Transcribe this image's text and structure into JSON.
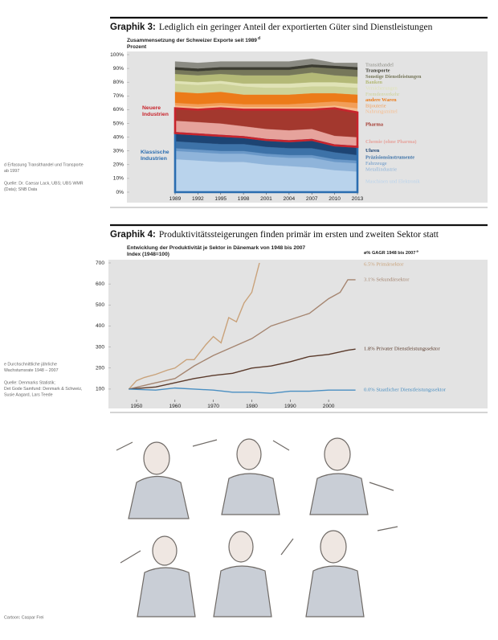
{
  "chart_data": [
    {
      "type": "area",
      "stacked": true,
      "label": "Graphik 3:",
      "title": "Lediglich ein geringer Anteil der exportierten Güter sind Dienstleistungen",
      "subtitle": "Zusammensetzung der Schweizer Exporte seit 1989",
      "footnote_marker": "d",
      "unit": "Prozent",
      "x": [
        1989,
        1992,
        1995,
        1998,
        2001,
        2004,
        2007,
        2010,
        2013
      ],
      "xlim": [
        1989,
        2013
      ],
      "xticks": [
        1989,
        1992,
        1995,
        1998,
        2001,
        2004,
        2007,
        2010,
        2013
      ],
      "ylim": [
        0,
        100
      ],
      "yticks": [
        {
          "value": 0,
          "label": "0%"
        },
        {
          "value": 10,
          "label": "10%"
        },
        {
          "value": 20,
          "label": "20%"
        },
        {
          "value": 30,
          "label": "30%"
        },
        {
          "value": 40,
          "label": "40%"
        },
        {
          "value": 50,
          "label": "50%"
        },
        {
          "value": 60,
          "label": "60%"
        },
        {
          "value": 70,
          "label": "70%"
        },
        {
          "value": 80,
          "label": "80%"
        },
        {
          "value": 90,
          "label": "90%"
        },
        {
          "value": 100,
          "label": "100%"
        }
      ],
      "grid": false,
      "series": [
        {
          "name": "Maschinen und Elektronik",
          "color": "#b9d3ec",
          "values": [
            24,
            23,
            22,
            22,
            20,
            19,
            18,
            16,
            15
          ]
        },
        {
          "name": "Metallindustrie",
          "color": "#8fb4da",
          "values": [
            6,
            6,
            6,
            6,
            6,
            6,
            7,
            6,
            6
          ]
        },
        {
          "name": "Fahrzeuge",
          "color": "#6a98c8",
          "values": [
            2,
            2,
            2,
            2,
            2,
            2,
            2,
            2,
            2
          ]
        },
        {
          "name": "Präzisionsinstrumente",
          "color": "#3d72a8",
          "values": [
            5,
            5,
            5,
            5,
            5,
            5,
            5,
            5,
            4
          ]
        },
        {
          "name": "Uhren",
          "color": "#1d4473",
          "values": [
            6,
            6,
            6,
            5,
            5,
            5,
            6,
            5,
            6
          ]
        },
        {
          "name": "Chemie (ohne Pharma)",
          "color": "#e6a39c",
          "values": [
            9,
            9,
            9,
            8,
            8,
            8,
            8,
            7,
            7
          ]
        },
        {
          "name": "Pharma",
          "color": "#a3382e",
          "values": [
            9,
            9,
            11,
            12,
            14,
            15,
            14,
            20,
            18
          ]
        },
        {
          "name": "Nahrungsmittel",
          "color": "#f7bd8e",
          "values": [
            2,
            2,
            2,
            2,
            2,
            2,
            2,
            2,
            3
          ]
        },
        {
          "name": "Bijouterie",
          "color": "#f29e58",
          "values": [
            2,
            2,
            2,
            2,
            2,
            2,
            3,
            3,
            4
          ]
        },
        {
          "name": "andere Waren",
          "color": "#ec7b19",
          "values": [
            8,
            8,
            8,
            7,
            7,
            7,
            7,
            6,
            6
          ]
        },
        {
          "name": "Fremdenverkehr",
          "color": "#cdd299",
          "values": [
            6,
            6,
            6,
            6,
            5,
            5,
            5,
            5,
            5
          ]
        },
        {
          "name": "Versicherungen",
          "color": "#e0e3b6",
          "values": [
            2,
            2,
            2,
            2,
            3,
            3,
            3,
            3,
            3
          ]
        },
        {
          "name": "Banken",
          "color": "#b4b977",
          "values": [
            5,
            5,
            5,
            6,
            6,
            6,
            7,
            5,
            5
          ]
        },
        {
          "name": "Sonstige Dienstleistungen",
          "color": "#76775a",
          "values": [
            3,
            3,
            3,
            4,
            4,
            4,
            4,
            5,
            5
          ]
        },
        {
          "name": "Transporte",
          "color": "#3b3b31",
          "values": [
            2,
            2,
            2,
            2,
            2,
            2,
            2,
            2,
            2
          ]
        },
        {
          "name": "Transithandel",
          "color": "#8b8b83",
          "values": [
            4,
            4,
            4,
            4,
            4,
            4,
            4,
            2,
            3
          ]
        }
      ],
      "annotations": [
        {
          "lines": [
            "Neuere",
            "Industrien"
          ],
          "color": "#c8242c"
        },
        {
          "lines": [
            "Klassische",
            "Industrien"
          ],
          "color": "#2a6db0"
        }
      ],
      "notes": [
        [
          "d Erfassung Transithandel und Transporte",
          "ab 1997"
        ],
        [
          "Quelle: Dr. Caesar Lack, UBS; UBS WMR",
          "(Data); SNB Data"
        ]
      ]
    },
    {
      "type": "line",
      "label": "Graphik 4:",
      "title": "Produktivitätssteigerungen finden primär im ersten und zweiten Sektor statt",
      "subtitle": "Entwicklung der Produktivität je Sektor in Dänemark von 1948 bis 2007",
      "unit": "Index (1948=100)",
      "legend_title": "ø% GAGR 1948 bis 2007",
      "footnote_marker": "e",
      "xlim": [
        1947.5,
        2007.5
      ],
      "xticks": [
        1950,
        1960,
        1970,
        1980,
        1990,
        2000
      ],
      "ylim": [
        50,
        700
      ],
      "yticks": [
        100,
        200,
        300,
        400,
        500,
        600,
        700
      ],
      "grid": false,
      "series": [
        {
          "name": "6.5% Primärsektor",
          "color": "#c9a27a",
          "x": [
            1948,
            1950,
            1952,
            1955,
            1958,
            1960,
            1963,
            1965,
            1968,
            1970,
            1972,
            1974,
            1976,
            1978,
            1980,
            1982
          ],
          "values": [
            100,
            140,
            155,
            170,
            190,
            200,
            240,
            240,
            310,
            350,
            320,
            440,
            420,
            510,
            560,
            700
          ]
        },
        {
          "name": "3.1% Sekundärsektor",
          "color": "#a58570",
          "x": [
            1948,
            1955,
            1960,
            1965,
            1970,
            1975,
            1980,
            1985,
            1990,
            1995,
            2000,
            2003,
            2005,
            2007
          ],
          "values": [
            100,
            130,
            150,
            210,
            260,
            300,
            340,
            400,
            430,
            460,
            530,
            560,
            620,
            620
          ]
        },
        {
          "name": "1.8% Privater Dienstleistungssektor",
          "color": "#5a3a2b",
          "x": [
            1948,
            1955,
            1960,
            1965,
            1970,
            1975,
            1980,
            1985,
            1990,
            1995,
            2000,
            2005,
            2007
          ],
          "values": [
            100,
            110,
            130,
            150,
            165,
            175,
            200,
            210,
            230,
            255,
            265,
            285,
            290
          ]
        },
        {
          "name": "0.0% Staatlicher Dienstleistungssektor",
          "color": "#4a8fc2",
          "x": [
            1948,
            1955,
            1960,
            1965,
            1970,
            1975,
            1980,
            1985,
            1990,
            1995,
            2000,
            2007
          ],
          "values": [
            100,
            95,
            105,
            100,
            95,
            85,
            85,
            80,
            90,
            90,
            95,
            95
          ]
        }
      ],
      "notes": [
        [
          "e Durchschnittliche jährliche",
          "Wachstumsrate 1948 – 2007"
        ],
        [
          "Quelle: Denmarks Statistik;",
          "Det Gode Samfund: Denmark & Schweiz,",
          "Susie Aagard, Lars Teede"
        ]
      ]
    }
  ],
  "cartoon": {
    "credit": "Cartoon: Caspar Frei"
  }
}
